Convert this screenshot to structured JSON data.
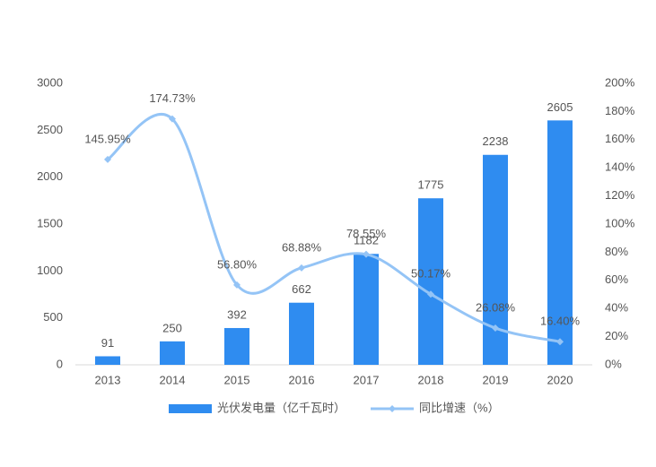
{
  "chart_data": {
    "type": "bar",
    "categories": [
      "2013",
      "2014",
      "2015",
      "2016",
      "2017",
      "2018",
      "2019",
      "2020"
    ],
    "series": [
      {
        "name": "光伏发电量（亿千瓦时）",
        "type": "bar",
        "color": "#2f8cf0",
        "values": [
          91,
          250,
          392,
          662,
          1182,
          1775,
          2238,
          2605
        ]
      },
      {
        "name": "同比增速（%）",
        "type": "line",
        "axis": "y2",
        "color": "#94c4f6",
        "values": [
          145.95,
          174.73,
          56.8,
          68.88,
          78.55,
          50.17,
          26.08,
          16.4
        ],
        "value_labels": [
          "145.95%",
          "174.73%",
          "56.80%",
          "68.88%",
          "78.55%",
          "50.17%",
          "26.08%",
          "16.40%"
        ]
      }
    ],
    "ylim": [
      0,
      3000
    ],
    "yticks": [
      0,
      500,
      1000,
      1500,
      2000,
      2500,
      3000
    ],
    "y2lim": [
      0,
      200
    ],
    "y2ticks": [
      {
        "value": 0,
        "label": "0%"
      },
      {
        "value": 20,
        "label": "20%"
      },
      {
        "value": 40,
        "label": "40%"
      },
      {
        "value": 60,
        "label": "60%"
      },
      {
        "value": 80,
        "label": "80%"
      },
      {
        "value": 100,
        "label": "100%"
      },
      {
        "value": 120,
        "label": "120%"
      },
      {
        "value": 140,
        "label": "140%"
      },
      {
        "value": 160,
        "label": "160%"
      },
      {
        "value": 180,
        "label": "180%"
      },
      {
        "value": 200,
        "label": "200%"
      }
    ],
    "legend": "bottom"
  }
}
